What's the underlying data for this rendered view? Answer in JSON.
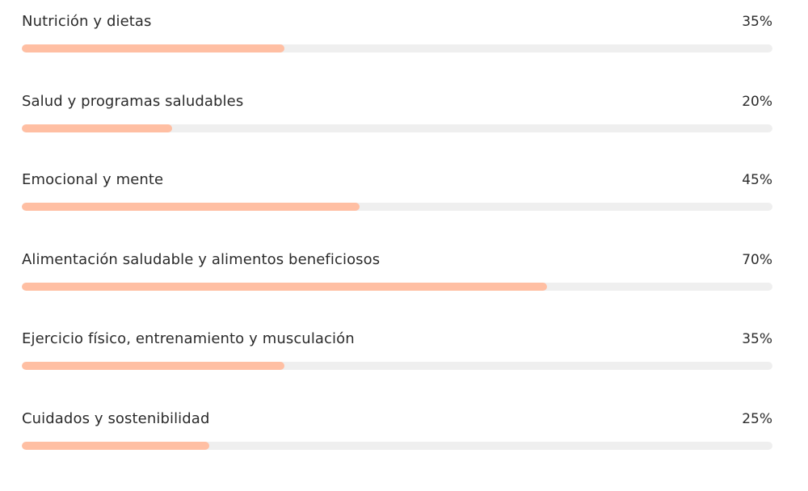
{
  "colors": {
    "fill": "#ffbfa3",
    "track": "#efefef",
    "text": "#2b2b2b"
  },
  "bars": [
    {
      "label": "Nutrición y dietas",
      "value_text": "35%",
      "value": 35
    },
    {
      "label": "Salud y programas saludables",
      "value_text": "20%",
      "value": 20
    },
    {
      "label": "Emocional y mente",
      "value_text": "45%",
      "value": 45
    },
    {
      "label": "Alimentación saludable y alimentos beneficiosos",
      "value_text": "70%",
      "value": 70
    },
    {
      "label": "Ejercicio físico, entrenamiento y musculación",
      "value_text": "35%",
      "value": 35
    },
    {
      "label": "Cuidados y sostenibilidad",
      "value_text": "25%",
      "value": 25
    }
  ]
}
